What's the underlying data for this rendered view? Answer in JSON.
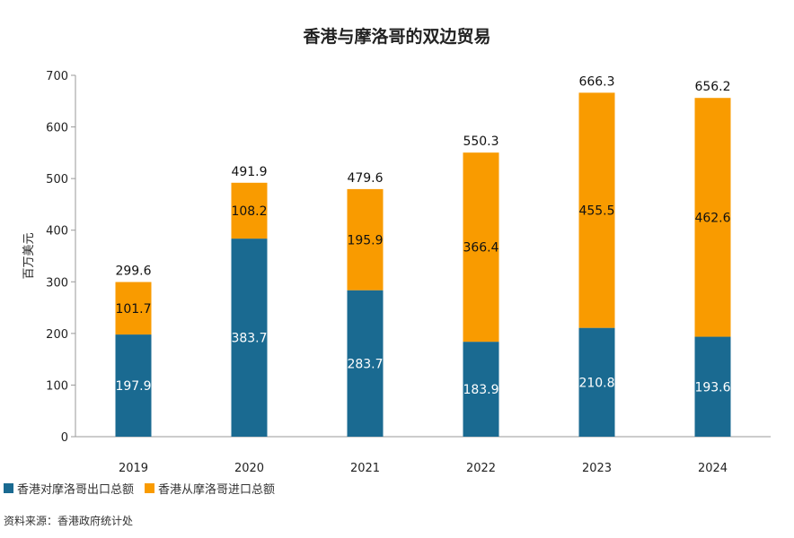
{
  "chart_data": {
    "type": "bar",
    "stacked": true,
    "title": "香港与摩洛哥的双边贸易",
    "xlabel": "",
    "ylabel": "百万美元",
    "ylim": [
      0,
      700
    ],
    "yticks": [
      0,
      100,
      200,
      300,
      400,
      500,
      600,
      700
    ],
    "categories": [
      "2019",
      "2020",
      "2021",
      "2022",
      "2023",
      "2024"
    ],
    "series": [
      {
        "name": "香港对摩洛哥出口总额",
        "color": "#1a6a91",
        "values": [
          197.9,
          383.7,
          283.7,
          183.9,
          210.8,
          193.6
        ]
      },
      {
        "name": "香港从摩洛哥进口总额",
        "color": "#f99b00",
        "values": [
          101.7,
          108.2,
          195.9,
          366.4,
          455.5,
          462.6
        ]
      }
    ],
    "totals": [
      299.6,
      491.9,
      479.6,
      550.3,
      666.3,
      656.2
    ],
    "legend": "bottom-left",
    "grid": false
  },
  "source": "资料来源：香港政府统计处"
}
